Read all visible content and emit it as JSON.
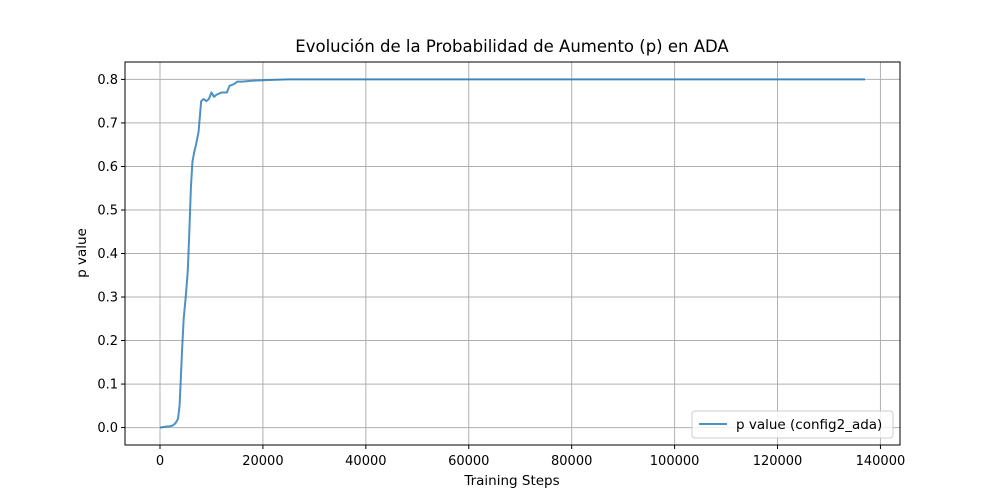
{
  "chart_data": {
    "type": "line",
    "title": "Evolución de la Probabilidad de Aumento (p) en ADA",
    "xlabel": "Training Steps",
    "ylabel": "p value",
    "xlim": [
      -6800,
      143800
    ],
    "ylim": [
      -0.04,
      0.84
    ],
    "xticks": [
      0,
      20000,
      40000,
      60000,
      80000,
      100000,
      120000,
      140000
    ],
    "xtick_labels": [
      "0",
      "20000",
      "40000",
      "60000",
      "80000",
      "100000",
      "120000",
      "140000"
    ],
    "yticks": [
      0.0,
      0.1,
      0.2,
      0.3,
      0.4,
      0.5,
      0.6,
      0.7,
      0.8
    ],
    "ytick_labels": [
      "0.0",
      "0.1",
      "0.2",
      "0.3",
      "0.4",
      "0.5",
      "0.6",
      "0.7",
      "0.8"
    ],
    "grid": true,
    "legend_position": "lower-right",
    "series": [
      {
        "name": "p value (config2_ada)",
        "color": "#1f77b4",
        "points": [
          [
            0,
            0.0
          ],
          [
            1000,
            0.002
          ],
          [
            2000,
            0.003
          ],
          [
            2500,
            0.005
          ],
          [
            3000,
            0.01
          ],
          [
            3500,
            0.02
          ],
          [
            3800,
            0.05
          ],
          [
            4000,
            0.1
          ],
          [
            4300,
            0.18
          ],
          [
            4600,
            0.25
          ],
          [
            5000,
            0.3
          ],
          [
            5400,
            0.36
          ],
          [
            5700,
            0.45
          ],
          [
            6000,
            0.55
          ],
          [
            6300,
            0.61
          ],
          [
            6600,
            0.63
          ],
          [
            7000,
            0.65
          ],
          [
            7500,
            0.68
          ],
          [
            8000,
            0.75
          ],
          [
            8500,
            0.755
          ],
          [
            9000,
            0.75
          ],
          [
            9500,
            0.755
          ],
          [
            10000,
            0.77
          ],
          [
            10500,
            0.76
          ],
          [
            11000,
            0.765
          ],
          [
            12000,
            0.77
          ],
          [
            13000,
            0.77
          ],
          [
            13500,
            0.785
          ],
          [
            14500,
            0.79
          ],
          [
            15000,
            0.795
          ],
          [
            16000,
            0.795
          ],
          [
            17000,
            0.796
          ],
          [
            18000,
            0.797
          ],
          [
            20000,
            0.798
          ],
          [
            22000,
            0.799
          ],
          [
            25000,
            0.8
          ],
          [
            30000,
            0.8
          ],
          [
            40000,
            0.8
          ],
          [
            60000,
            0.8
          ],
          [
            80000,
            0.8
          ],
          [
            100000,
            0.8
          ],
          [
            120000,
            0.8
          ],
          [
            137000,
            0.8
          ]
        ]
      }
    ]
  },
  "colors": {
    "series": "#1f77b4",
    "grid": "#b0b0b0",
    "axes": "#000000",
    "background": "#ffffff"
  }
}
